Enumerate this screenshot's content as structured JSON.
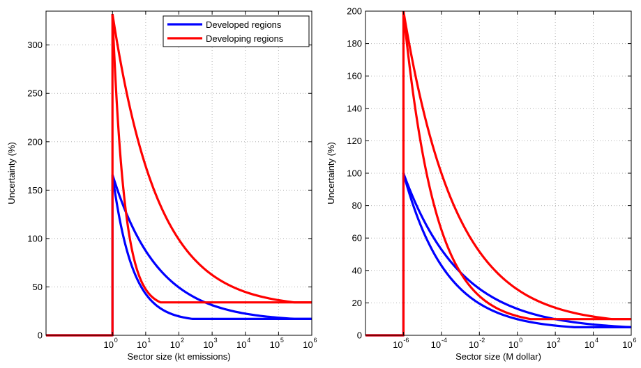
{
  "chart_data": [
    {
      "type": "line",
      "xlabel": "Sector size (kt emissions)",
      "ylabel": "Uncertainty (%)",
      "xscale": "log",
      "xlim": [
        0.01,
        1000000
      ],
      "ylim": [
        0,
        335
      ],
      "xticks": [
        1,
        10,
        100,
        1000,
        10000,
        100000,
        1000000
      ],
      "xtick_labels": [
        {
          "base": "10",
          "exp": "0"
        },
        {
          "base": "10",
          "exp": "1"
        },
        {
          "base": "10",
          "exp": "2"
        },
        {
          "base": "10",
          "exp": "3"
        },
        {
          "base": "10",
          "exp": "4"
        },
        {
          "base": "10",
          "exp": "5"
        },
        {
          "base": "10",
          "exp": "6"
        }
      ],
      "yticks": [
        0,
        50,
        100,
        150,
        200,
        250,
        300
      ],
      "ytick_labels": [
        "0",
        "50",
        "100",
        "150",
        "200",
        "250",
        "300"
      ],
      "grid": true,
      "legend": {
        "position": "top-right",
        "entries": [
          {
            "label": "Developed regions",
            "color": "#0000ff"
          },
          {
            "label": "Developing regions",
            "color": "#ff0000"
          }
        ]
      },
      "series": [
        {
          "name": "Developed regions",
          "color": "#0000ff",
          "kind": "step",
          "x_start": 0.01,
          "x_jump": 1,
          "y_zero": 0,
          "y_max": 166
        },
        {
          "name": "Developed regions",
          "color": "#0000ff",
          "kind": "decay",
          "x0": 1,
          "y0": 166,
          "x1": 1000000,
          "y1": 17,
          "y_floor": 17,
          "x_floor": 250
        },
        {
          "name": "Developed regions",
          "color": "#0000ff",
          "kind": "decay",
          "x0": 1,
          "y0": 166,
          "x1": 1000000,
          "y1": 17,
          "y_floor": 17,
          "x_floor": 300000
        },
        {
          "name": "Developing regions",
          "color": "#ff0000",
          "kind": "step",
          "x_start": 0.01,
          "x_jump": 1,
          "y_zero": 0,
          "y_max": 332
        },
        {
          "name": "Developing regions",
          "color": "#ff0000",
          "kind": "decay",
          "x0": 1,
          "y0": 332,
          "x1": 1000000,
          "y1": 34,
          "y_floor": 34,
          "x_floor": 28
        },
        {
          "name": "Developing regions",
          "color": "#ff0000",
          "kind": "decay",
          "x0": 1,
          "y0": 332,
          "x1": 1000000,
          "y1": 34,
          "y_floor": 34,
          "x_floor": 300000
        }
      ]
    },
    {
      "type": "line",
      "xlabel": "Sector size (M dollar)",
      "ylabel": "Uncertainty (%)",
      "xscale": "log",
      "xlim": [
        1e-08,
        1000000
      ],
      "ylim": [
        0,
        200
      ],
      "xticks": [
        1e-06,
        0.0001,
        0.01,
        1,
        100,
        10000,
        1000000
      ],
      "xtick_labels": [
        {
          "base": "10",
          "exp": "-6"
        },
        {
          "base": "10",
          "exp": "-4"
        },
        {
          "base": "10",
          "exp": "-2"
        },
        {
          "base": "10",
          "exp": "0"
        },
        {
          "base": "10",
          "exp": "2"
        },
        {
          "base": "10",
          "exp": "4"
        },
        {
          "base": "10",
          "exp": "6"
        }
      ],
      "yticks": [
        0,
        20,
        40,
        60,
        80,
        100,
        120,
        140,
        160,
        180,
        200
      ],
      "ytick_labels": [
        "0",
        "20",
        "40",
        "60",
        "80",
        "100",
        "120",
        "140",
        "160",
        "180",
        "200"
      ],
      "grid": true,
      "series": [
        {
          "name": "Developed regions",
          "color": "#0000ff",
          "kind": "step",
          "x_start": 1e-08,
          "x_jump": 1e-06,
          "y_zero": 0,
          "y_max": 100
        },
        {
          "name": "Developed regions",
          "color": "#0000ff",
          "kind": "decay",
          "x0": 1e-06,
          "y0": 100,
          "x1": 1000000,
          "y1": 5,
          "y_floor": 5,
          "x_floor": 1000
        },
        {
          "name": "Developed regions",
          "color": "#0000ff",
          "kind": "decay",
          "x0": 1e-06,
          "y0": 100,
          "x1": 1000000,
          "y1": 5,
          "y_floor": 5,
          "x_floor": 1000000
        },
        {
          "name": "Developing regions",
          "color": "#ff0000",
          "kind": "step",
          "x_start": 1e-08,
          "x_jump": 1e-06,
          "y_zero": 0,
          "y_max": 200
        },
        {
          "name": "Developing regions",
          "color": "#ff0000",
          "kind": "decay",
          "x0": 1e-06,
          "y0": 200,
          "x1": 1000000,
          "y1": 10,
          "y_floor": 10,
          "x_floor": 5
        },
        {
          "name": "Developing regions",
          "color": "#ff0000",
          "kind": "decay",
          "x0": 1e-06,
          "y0": 200,
          "x1": 1000000,
          "y1": 10,
          "y_floor": 10,
          "x_floor": 100000
        }
      ]
    }
  ]
}
